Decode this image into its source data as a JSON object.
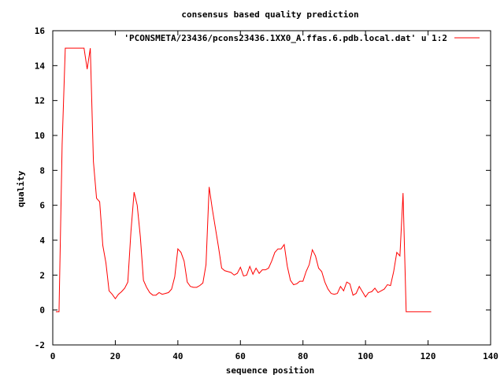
{
  "chart_data": {
    "type": "line",
    "title": "consensus based quality prediction",
    "xlabel": "sequence position",
    "ylabel": "quality",
    "xlim": [
      0,
      140
    ],
    "ylim": [
      -2,
      16
    ],
    "xticks": [
      0,
      20,
      40,
      60,
      80,
      100,
      120,
      140
    ],
    "yticks": [
      -2,
      0,
      2,
      4,
      6,
      8,
      10,
      12,
      14,
      16
    ],
    "grid": false,
    "legend_position": "top-right",
    "series": [
      {
        "name": "'PCONSMETA/23436/pcons23436.1XX0_A.ffas.6.pdb.local.dat' u 1:2",
        "color": "#ff0000",
        "x": [
          1,
          2,
          3,
          4,
          5,
          6,
          7,
          8,
          9,
          10,
          11,
          12,
          13,
          14,
          15,
          16,
          17,
          18,
          19,
          20,
          21,
          22,
          23,
          24,
          25,
          26,
          27,
          28,
          29,
          30,
          31,
          32,
          33,
          34,
          35,
          36,
          37,
          38,
          39,
          40,
          41,
          42,
          43,
          44,
          45,
          46,
          47,
          48,
          49,
          50,
          51,
          52,
          53,
          54,
          55,
          56,
          57,
          58,
          59,
          60,
          61,
          62,
          63,
          64,
          65,
          66,
          67,
          68,
          69,
          70,
          71,
          72,
          73,
          74,
          75,
          76,
          77,
          78,
          79,
          80,
          81,
          82,
          83,
          84,
          85,
          86,
          87,
          88,
          89,
          90,
          91,
          92,
          93,
          94,
          95,
          96,
          97,
          98,
          99,
          100,
          101,
          102,
          103,
          104,
          105,
          106,
          107,
          108,
          109,
          110,
          111,
          112,
          113,
          114,
          115,
          116,
          117,
          118,
          119,
          120,
          121
        ],
        "y": [
          -0.1,
          -0.1,
          9.5,
          15.0,
          15.0,
          15.0,
          15.0,
          15.0,
          15.0,
          15.0,
          13.8,
          15.0,
          8.5,
          6.4,
          6.2,
          3.7,
          2.7,
          1.1,
          0.9,
          0.65,
          0.9,
          1.05,
          1.25,
          1.6,
          4.5,
          6.75,
          6.0,
          4.2,
          1.7,
          1.3,
          1.0,
          0.85,
          0.85,
          1.0,
          0.9,
          0.95,
          1.0,
          1.2,
          1.9,
          3.5,
          3.3,
          2.8,
          1.6,
          1.35,
          1.3,
          1.3,
          1.4,
          1.55,
          2.6,
          7.05,
          5.8,
          4.7,
          3.6,
          2.4,
          2.25,
          2.2,
          2.15,
          2.0,
          2.1,
          2.45,
          1.95,
          2.0,
          2.5,
          2.05,
          2.4,
          2.1,
          2.3,
          2.3,
          2.4,
          2.8,
          3.3,
          3.5,
          3.5,
          3.75,
          2.5,
          1.7,
          1.45,
          1.5,
          1.65,
          1.65,
          2.2,
          2.6,
          3.45,
          3.1,
          2.4,
          2.2,
          1.6,
          1.2,
          0.95,
          0.9,
          0.95,
          1.35,
          1.1,
          1.6,
          1.5,
          0.85,
          0.95,
          1.35,
          1.05,
          0.75,
          1.0,
          1.05,
          1.25,
          1.0,
          1.1,
          1.2,
          1.45,
          1.4,
          2.2,
          3.3,
          3.1,
          6.7,
          -0.1,
          -0.1,
          -0.1,
          -0.1,
          -0.1,
          -0.1,
          -0.1,
          -0.1,
          -0.1
        ]
      }
    ]
  }
}
